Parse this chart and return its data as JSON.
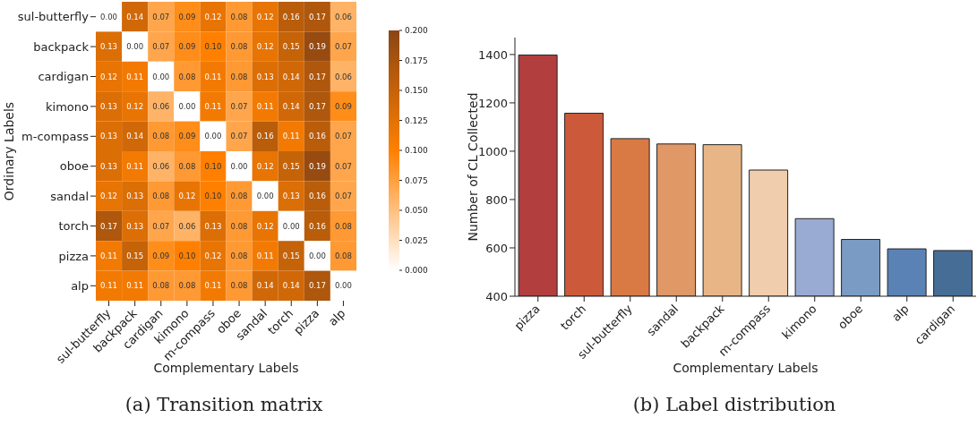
{
  "chart_data": [
    {
      "type": "heatmap",
      "annotations": [
        "(a) Transition matrix"
      ],
      "xlabel": "Complementary Labels",
      "ylabel": "Ordinary Labels",
      "categories": [
        "sul-butterfly",
        "backpack",
        "cardigan",
        "kimono",
        "m-compass",
        "oboe",
        "sandal",
        "torch",
        "pizza",
        "alp"
      ],
      "y_categories": [
        "sul-butterfly",
        "backpack",
        "cardigan",
        "kimono",
        "m-compass",
        "oboe",
        "sandal",
        "torch",
        "pizza",
        "alp"
      ],
      "cells": [
        [
          0,
          0.14,
          0.07,
          0.09,
          0.12,
          0.08,
          0.12,
          0.16,
          0.17,
          0.06
        ],
        [
          0.13,
          0,
          0.07,
          0.09,
          0.1,
          0.08,
          0.12,
          0.15,
          0.19,
          0.07
        ],
        [
          0.12,
          0.11,
          0,
          0.08,
          0.11,
          0.08,
          0.13,
          0.14,
          0.17,
          0.06
        ],
        [
          0.13,
          0.12,
          0.06,
          0,
          0.11,
          0.07,
          0.11,
          0.14,
          0.17,
          0.09
        ],
        [
          0.13,
          0.14,
          0.08,
          0.09,
          0,
          0.07,
          0.16,
          0.11,
          0.16,
          0.07
        ],
        [
          0.13,
          0.11,
          0.06,
          0.08,
          0.1,
          0,
          0.12,
          0.15,
          0.19,
          0.07
        ],
        [
          0.12,
          0.13,
          0.08,
          0.12,
          0.1,
          0.08,
          0,
          0.13,
          0.16,
          0.07
        ],
        [
          0.17,
          0.13,
          0.07,
          0.06,
          0.13,
          0.08,
          0.12,
          0,
          0.16,
          0.08
        ],
        [
          0.11,
          0.15,
          0.09,
          0.1,
          0.12,
          0.08,
          0.11,
          0.15,
          0,
          0.08
        ],
        [
          0.11,
          0.11,
          0.08,
          0.08,
          0.11,
          0.08,
          0.14,
          0.14,
          0.17,
          0
        ]
      ],
      "cell_labels": [
        [
          "0.00",
          "0.14",
          "0.07",
          "0.09",
          "0.12",
          "0.08",
          "0.12",
          "0.16",
          "0.17",
          "0.06"
        ],
        [
          "0.13",
          "0.00",
          "0.07",
          "0.09",
          "0.10",
          "0.08",
          "0.12",
          "0.15",
          "0.19",
          "0.07"
        ],
        [
          "0.12",
          "0.11",
          "0.00",
          "0.08",
          "0.11",
          "0.08",
          "0.13",
          "0.14",
          "0.17",
          "0.06"
        ],
        [
          "0.13",
          "0.12",
          "0.06",
          "0.00",
          "0.11",
          "0.07",
          "0.11",
          "0.14",
          "0.17",
          "0.09"
        ],
        [
          "0.13",
          "0.14",
          "0.08",
          "0.09",
          "0.00",
          "0.07",
          "0.16",
          "0.11",
          "0.16",
          "0.07"
        ],
        [
          "0.13",
          "0.11",
          "0.06",
          "0.08",
          "0.10",
          "0.00",
          "0.12",
          "0.15",
          "0.19",
          "0.07"
        ],
        [
          "0.12",
          "0.13",
          "0.08",
          "0.12",
          "0.10",
          "0.08",
          "0.00",
          "0.13",
          "0.16",
          "0.07"
        ],
        [
          "0.17",
          "0.13",
          "0.07",
          "0.06",
          "0.13",
          "0.08",
          "0.12",
          "0.00",
          "0.16",
          "0.08"
        ],
        [
          "0.11",
          "0.15",
          "0.09",
          "0.10",
          "0.12",
          "0.08",
          "0.11",
          "0.15",
          "0.00",
          "0.08"
        ],
        [
          "0.11",
          "0.11",
          "0.08",
          "0.08",
          "0.11",
          "0.08",
          "0.14",
          "0.14",
          "0.17",
          "0.00"
        ]
      ],
      "clim": [
        0,
        0.2
      ],
      "cticks": [
        {
          "value": 0,
          "label": "0.000"
        },
        {
          "value": 0.025,
          "label": "0.025"
        },
        {
          "value": 0.05,
          "label": "0.050"
        },
        {
          "value": 0.075,
          "label": "0.075"
        },
        {
          "value": 0.1,
          "label": "0.100"
        },
        {
          "value": 0.125,
          "label": "0.125"
        },
        {
          "value": 0.15,
          "label": "0.150"
        },
        {
          "value": 0.175,
          "label": "0.175"
        },
        {
          "value": 0.2,
          "label": "0.200"
        }
      ]
    },
    {
      "type": "bar",
      "annotations": [
        "(b) Label distribution"
      ],
      "xlabel": "Complementary Labels",
      "ylabel": "Number of CL Collected",
      "categories": [
        "pizza",
        "torch",
        "sul-butterfly",
        "sandal",
        "backpack",
        "m-compass",
        "kimono",
        "oboe",
        "alp",
        "cardigan"
      ],
      "values": [
        1398,
        1157,
        1052,
        1030,
        1027,
        922,
        721,
        635,
        596,
        589
      ],
      "colors": [
        "#b33e3e",
        "#cc5a3a",
        "#d97a45",
        "#e09866",
        "#e8b586",
        "#f0cdad",
        "#99abd3",
        "#7a9cc4",
        "#5b82b5",
        "#466d96"
      ],
      "ylim": [
        400,
        1470
      ],
      "yticks": [
        400,
        600,
        800,
        1000,
        1200,
        1400
      ],
      "grid": false
    }
  ]
}
